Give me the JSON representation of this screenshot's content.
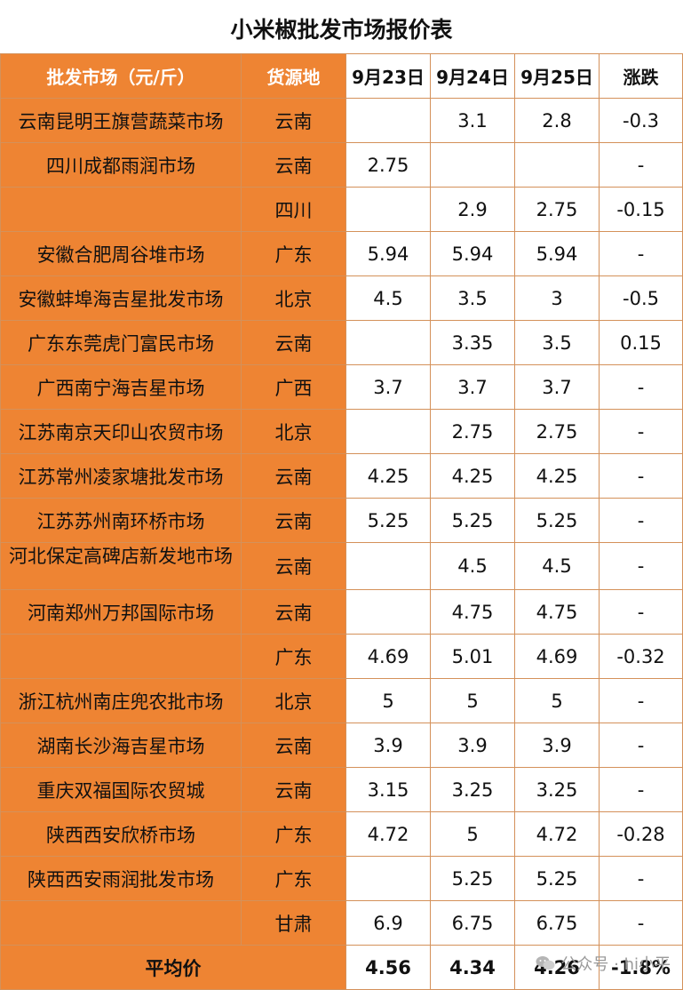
{
  "title": "小米椒批发市场报价表",
  "headers": {
    "market": "批发市场（元/斤）",
    "origin": "货源地",
    "d1": "9月23日",
    "d2": "9月24日",
    "d3": "9月25日",
    "change": "涨跌"
  },
  "rows": [
    {
      "market": "云南昆明王旗营蔬菜市场",
      "origin": "云南",
      "d1": "",
      "d2": "3.1",
      "d3": "2.8",
      "change": "-0.3",
      "trend": "down"
    },
    {
      "market": "四川成都雨润市场",
      "origin": "云南",
      "d1": "2.75",
      "d2": "",
      "d3": "",
      "change": "-",
      "trend": "flat"
    },
    {
      "market": "",
      "origin": "四川",
      "d1": "",
      "d2": "2.9",
      "d3": "2.75",
      "change": "-0.15",
      "trend": "down"
    },
    {
      "market": "安徽合肥周谷堆市场",
      "origin": "广东",
      "d1": "5.94",
      "d2": "5.94",
      "d3": "5.94",
      "change": "-",
      "trend": "flat"
    },
    {
      "market": "安徽蚌埠海吉星批发市场",
      "origin": "北京",
      "d1": "4.5",
      "d2": "3.5",
      "d3": "3",
      "change": "-0.5",
      "trend": "down"
    },
    {
      "market": "广东东莞虎门富民市场",
      "origin": "云南",
      "d1": "",
      "d2": "3.35",
      "d3": "3.5",
      "change": "0.15",
      "trend": "up"
    },
    {
      "market": "广西南宁海吉星市场",
      "origin": "广西",
      "d1": "3.7",
      "d2": "3.7",
      "d3": "3.7",
      "change": "-",
      "trend": "flat"
    },
    {
      "market": "江苏南京天印山农贸市场",
      "origin": "北京",
      "d1": "",
      "d2": "2.75",
      "d3": "2.75",
      "change": "-",
      "trend": "flat"
    },
    {
      "market": "江苏常州凌家塘批发市场",
      "origin": "云南",
      "d1": "4.25",
      "d2": "4.25",
      "d3": "4.25",
      "change": "-",
      "trend": "flat"
    },
    {
      "market": "江苏苏州南环桥市场",
      "origin": "云南",
      "d1": "5.25",
      "d2": "5.25",
      "d3": "5.25",
      "change": "-",
      "trend": "flat"
    },
    {
      "market": "河北保定高碑店新发地市场",
      "origin": "云南",
      "d1": "",
      "d2": "4.5",
      "d3": "4.5",
      "change": "-",
      "trend": "flat"
    },
    {
      "market": "河南郑州万邦国际市场",
      "origin": "云南",
      "d1": "",
      "d2": "4.75",
      "d3": "4.75",
      "change": "-",
      "trend": "flat"
    },
    {
      "market": "",
      "origin": "广东",
      "d1": "4.69",
      "d2": "5.01",
      "d3": "4.69",
      "change": "-0.32",
      "trend": "down"
    },
    {
      "market": "浙江杭州南庄兜农批市场",
      "origin": "北京",
      "d1": "5",
      "d2": "5",
      "d3": "5",
      "change": "-",
      "trend": "flat"
    },
    {
      "market": "湖南长沙海吉星市场",
      "origin": "云南",
      "d1": "3.9",
      "d2": "3.9",
      "d3": "3.9",
      "change": "-",
      "trend": "flat"
    },
    {
      "market": "重庆双福国际农贸城",
      "origin": "云南",
      "d1": "3.15",
      "d2": "3.25",
      "d3": "3.25",
      "change": "-",
      "trend": "flat"
    },
    {
      "market": "陕西西安欣桥市场",
      "origin": "广东",
      "d1": "4.72",
      "d2": "5",
      "d3": "4.72",
      "change": "-0.28",
      "trend": "down"
    },
    {
      "market": "陕西西安雨润批发市场",
      "origin": "广东",
      "d1": "",
      "d2": "5.25",
      "d3": "5.25",
      "change": "-",
      "trend": "flat"
    },
    {
      "market": "",
      "origin": "甘肃",
      "d1": "6.9",
      "d2": "6.75",
      "d3": "6.75",
      "change": "-",
      "trend": "flat"
    }
  ],
  "average": {
    "label": "平均价",
    "d1": "4.56",
    "d2": "4.34",
    "d3": "4.26",
    "change": "-1.8%"
  },
  "watermark": "公众号 · hi小平",
  "colors": {
    "header_orange": "#ee8433",
    "up_red": "#e0231f",
    "down_green": "#14a35a",
    "border": "#d4915a"
  }
}
